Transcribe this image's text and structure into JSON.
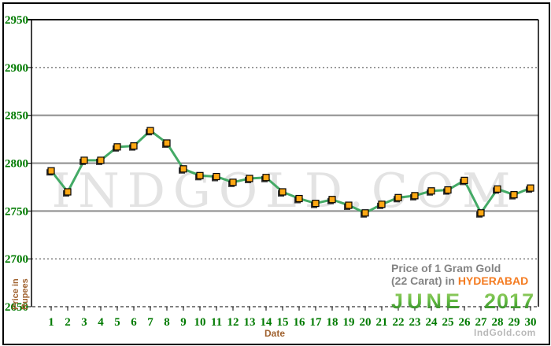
{
  "chart_data": {
    "type": "line",
    "title": "Price of 1 Gram Gold (22 Carat) in HYDERABAD - JUNE 2017",
    "xlabel": "Date",
    "ylabel": "Price in Rupees",
    "x": [
      1,
      2,
      3,
      4,
      5,
      6,
      7,
      8,
      9,
      10,
      11,
      12,
      13,
      14,
      15,
      16,
      17,
      18,
      19,
      20,
      21,
      22,
      23,
      24,
      25,
      26,
      27,
      28,
      29,
      30
    ],
    "values": [
      2792,
      2770,
      2803,
      2803,
      2817,
      2818,
      2834,
      2821,
      2794,
      2787,
      2786,
      2780,
      2784,
      2785,
      2770,
      2763,
      2758,
      2762,
      2756,
      2748,
      2757,
      2764,
      2766,
      2771,
      2772,
      2782,
      2748,
      2773,
      2767,
      2774
    ],
    "series_name": "Gold price per 1 gram (22 carat), Rupees",
    "ylim": [
      2650,
      2950
    ],
    "yticks": [
      2950,
      2900,
      2850,
      2800,
      2750,
      2700,
      2650
    ],
    "grid": "horizontal",
    "legend_position": "none"
  },
  "labels": {
    "y_axis_line1": "Price in",
    "y_axis_line2": "Rupees",
    "x_axis": "Date"
  },
  "caption": {
    "line1": "Price of 1 Gram Gold",
    "line2_prefix": "(22 Carat) in ",
    "line2_highlight": "HYDERABAD",
    "month": "JUNE",
    "year": "2017"
  },
  "watermark": "INDGOLD.COM",
  "footer_brand": "IndGold.com",
  "colors": {
    "line": "#44AA66",
    "marker": "#FFA813",
    "marker_border": "#000000",
    "marker_shadow": "#1A1A1A",
    "axis_label_green": "#007A00",
    "axis_title_brown": "#A0622F",
    "caption_gray": "#848484",
    "city_orange": "#F47B20",
    "month_green_light": "#A8D06C",
    "month_green_dark": "#247A24",
    "grid_solid": "#8C8C8C",
    "grid_dotted": "#444444",
    "frame_black": "#000000",
    "watermark_gray": "#E3E3E3",
    "brand_gray": "#B9B9B9"
  }
}
